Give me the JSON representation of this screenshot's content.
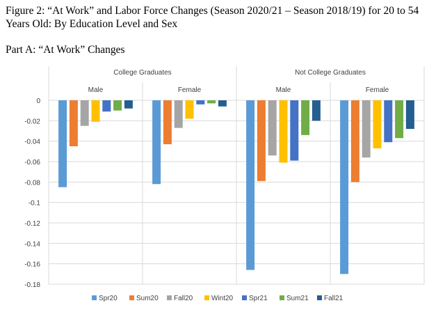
{
  "page": {
    "title": "Figure 2: “At Work” and Labor Force Changes (Season 2020/21 – Season 2018/19) for 20 to 54 Years Old: By Education Level and Sex",
    "subtitle": "Part A: “At Work” Changes"
  },
  "chart_data": {
    "type": "bar",
    "title": "",
    "xlabel": "",
    "ylabel": "",
    "ylim": [
      -0.18,
      0
    ],
    "yticks": [
      0,
      -0.02,
      -0.04,
      -0.06,
      -0.08,
      -0.1,
      -0.12,
      -0.14,
      -0.16,
      -0.18
    ],
    "ytick_labels": [
      "0",
      "-0.02",
      "-0.04",
      "-0.06",
      "-0.08",
      "-0.1",
      "-0.12",
      "-0.14",
      "-0.16",
      "-0.18"
    ],
    "grid": true,
    "legend_position": "bottom",
    "groups": [
      "College Graduates",
      "Not College Graduates"
    ],
    "categories": [
      "Male",
      "Female",
      "Male",
      "Female"
    ],
    "category_group": [
      0,
      0,
      1,
      1
    ],
    "series": [
      {
        "name": "Spr20",
        "color": "#5b9bd5",
        "values": [
          -0.085,
          -0.082,
          -0.166,
          -0.17
        ]
      },
      {
        "name": "Sum20",
        "color": "#ed7d31",
        "values": [
          -0.045,
          -0.043,
          -0.079,
          -0.08
        ]
      },
      {
        "name": "Fall20",
        "color": "#a5a5a5",
        "values": [
          -0.025,
          -0.027,
          -0.054,
          -0.056
        ]
      },
      {
        "name": "Wint20",
        "color": "#ffc000",
        "values": [
          -0.021,
          -0.018,
          -0.061,
          -0.047
        ]
      },
      {
        "name": "Spr21",
        "color": "#4472c4",
        "values": [
          -0.011,
          -0.004,
          -0.059,
          -0.041
        ]
      },
      {
        "name": "Sum21",
        "color": "#70ad47",
        "values": [
          -0.01,
          -0.003,
          -0.034,
          -0.037
        ]
      },
      {
        "name": "Fall21",
        "color": "#255e91",
        "values": [
          -0.008,
          -0.006,
          -0.02,
          -0.028
        ]
      }
    ]
  }
}
